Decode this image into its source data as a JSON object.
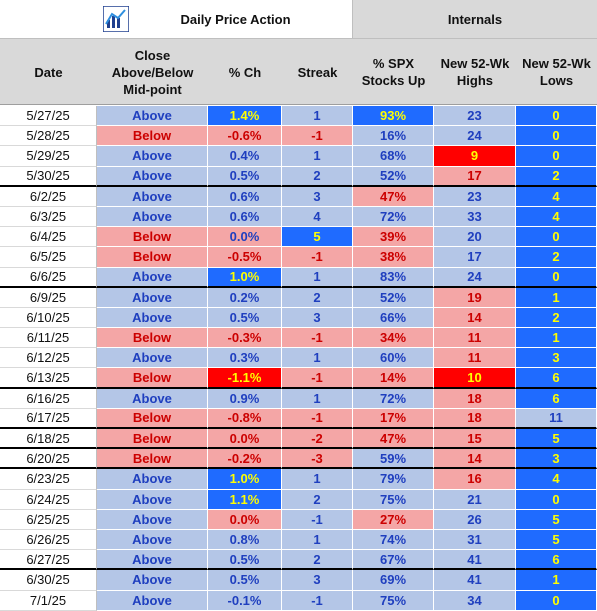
{
  "header": {
    "daily_price_action": "Daily Price Action",
    "internals": "Internals",
    "logo": "bar-chart-logo-icon"
  },
  "columns": {
    "date": "Date",
    "close": "Close\nAbove/Below\nMid-point",
    "pct": "% Ch",
    "streak": "Streak",
    "spx": "% SPX\nStocks Up",
    "highs": "New 52-Wk\nHighs",
    "lows": "New 52-Wk\nLows"
  },
  "colors": {
    "blue_light": "#b4c6e7",
    "red_light": "#f4a6a6",
    "blue_strong": "#1f6bff",
    "red_strong": "#ff0000",
    "text_blue": "#1f3fbf",
    "text_red": "#cc0000",
    "text_yellow": "#ffff00"
  },
  "rows": [
    {
      "date": "5/27/25",
      "close": "Above",
      "pct": "1.4%",
      "streak": "1",
      "spx": "93%",
      "highs": "23",
      "lows": "0"
    },
    {
      "date": "5/28/25",
      "close": "Below",
      "pct": "-0.6%",
      "streak": "-1",
      "spx": "16%",
      "highs": "24",
      "lows": "0"
    },
    {
      "date": "5/29/25",
      "close": "Above",
      "pct": "0.4%",
      "streak": "1",
      "spx": "68%",
      "highs": "9",
      "lows": "0"
    },
    {
      "date": "5/30/25",
      "close": "Above",
      "pct": "0.5%",
      "streak": "2",
      "spx": "52%",
      "highs": "17",
      "lows": "2"
    },
    {
      "date": "6/2/25",
      "close": "Above",
      "pct": "0.6%",
      "streak": "3",
      "spx": "47%",
      "highs": "23",
      "lows": "4"
    },
    {
      "date": "6/3/25",
      "close": "Above",
      "pct": "0.6%",
      "streak": "4",
      "spx": "72%",
      "highs": "33",
      "lows": "4"
    },
    {
      "date": "6/4/25",
      "close": "Below",
      "pct": "0.0%",
      "streak": "5",
      "spx": "39%",
      "highs": "20",
      "lows": "0"
    },
    {
      "date": "6/5/25",
      "close": "Below",
      "pct": "-0.5%",
      "streak": "-1",
      "spx": "38%",
      "highs": "17",
      "lows": "2"
    },
    {
      "date": "6/6/25",
      "close": "Above",
      "pct": "1.0%",
      "streak": "1",
      "spx": "83%",
      "highs": "24",
      "lows": "0"
    },
    {
      "date": "6/9/25",
      "close": "Above",
      "pct": "0.2%",
      "streak": "2",
      "spx": "52%",
      "highs": "19",
      "lows": "1"
    },
    {
      "date": "6/10/25",
      "close": "Above",
      "pct": "0.5%",
      "streak": "3",
      "spx": "66%",
      "highs": "14",
      "lows": "2"
    },
    {
      "date": "6/11/25",
      "close": "Below",
      "pct": "-0.3%",
      "streak": "-1",
      "spx": "34%",
      "highs": "11",
      "lows": "1"
    },
    {
      "date": "6/12/25",
      "close": "Above",
      "pct": "0.3%",
      "streak": "1",
      "spx": "60%",
      "highs": "11",
      "lows": "3"
    },
    {
      "date": "6/13/25",
      "close": "Below",
      "pct": "-1.1%",
      "streak": "-1",
      "spx": "14%",
      "highs": "10",
      "lows": "6"
    },
    {
      "date": "6/16/25",
      "close": "Above",
      "pct": "0.9%",
      "streak": "1",
      "spx": "72%",
      "highs": "18",
      "lows": "6"
    },
    {
      "date": "6/17/25",
      "close": "Below",
      "pct": "-0.8%",
      "streak": "-1",
      "spx": "17%",
      "highs": "18",
      "lows": "11"
    },
    {
      "date": "6/18/25",
      "close": "Below",
      "pct": "0.0%",
      "streak": "-2",
      "spx": "47%",
      "highs": "15",
      "lows": "5"
    },
    {
      "date": "6/20/25",
      "close": "Below",
      "pct": "-0.2%",
      "streak": "-3",
      "spx": "59%",
      "highs": "14",
      "lows": "3"
    },
    {
      "date": "6/23/25",
      "close": "Above",
      "pct": "1.0%",
      "streak": "1",
      "spx": "79%",
      "highs": "16",
      "lows": "4"
    },
    {
      "date": "6/24/25",
      "close": "Above",
      "pct": "1.1%",
      "streak": "2",
      "spx": "75%",
      "highs": "21",
      "lows": "0"
    },
    {
      "date": "6/25/25",
      "close": "Above",
      "pct": "0.0%",
      "streak": "-1",
      "spx": "27%",
      "highs": "26",
      "lows": "5"
    },
    {
      "date": "6/26/25",
      "close": "Above",
      "pct": "0.8%",
      "streak": "1",
      "spx": "74%",
      "highs": "31",
      "lows": "5"
    },
    {
      "date": "6/27/25",
      "close": "Above",
      "pct": "0.5%",
      "streak": "2",
      "spx": "67%",
      "highs": "41",
      "lows": "6"
    },
    {
      "date": "6/30/25",
      "close": "Above",
      "pct": "0.5%",
      "streak": "3",
      "spx": "69%",
      "highs": "41",
      "lows": "1"
    },
    {
      "date": "7/1/25",
      "close": "Above",
      "pct": "-0.1%",
      "streak": "-1",
      "spx": "75%",
      "highs": "34",
      "lows": "0"
    }
  ]
}
